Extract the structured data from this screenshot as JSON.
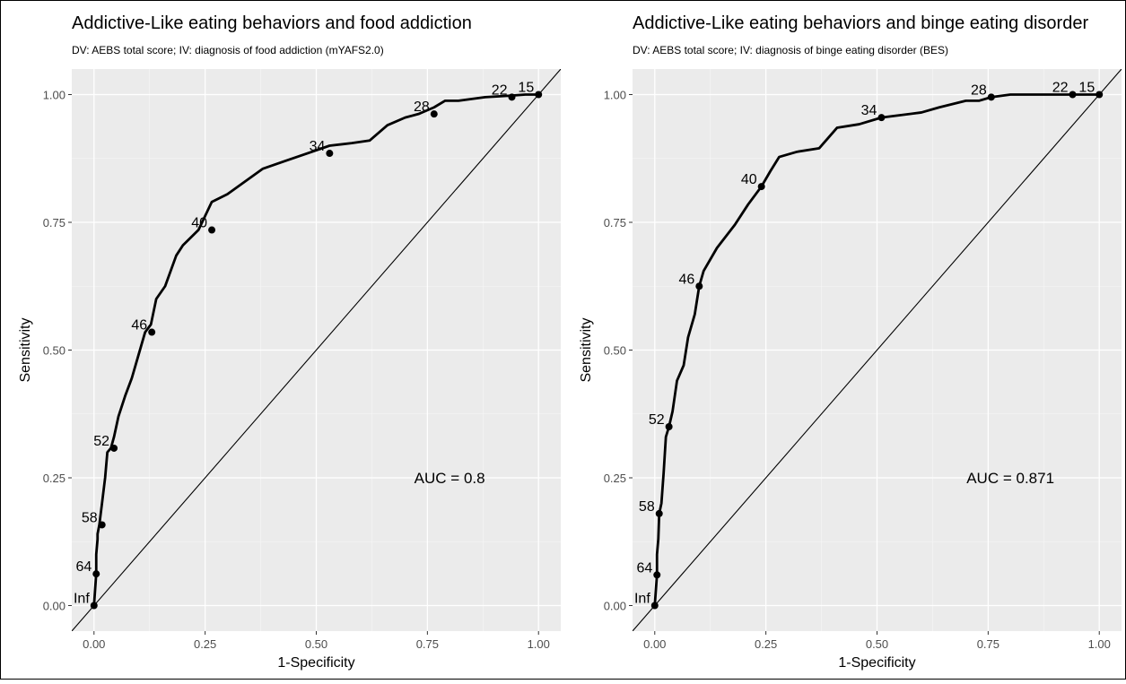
{
  "chart_data": [
    {
      "type": "line",
      "title": "Addictive-Like eating behaviors and food addiction",
      "subtitle": "DV: AEBS total score; IV: diagnosis of food addiction (mYAFS2.0)",
      "xlabel": "1-Specificity",
      "ylabel": "Sensitivity",
      "xlim": [
        -0.05,
        1.05
      ],
      "ylim": [
        -0.05,
        1.05
      ],
      "xticks": [
        0,
        0.25,
        0.5,
        0.75,
        1
      ],
      "xtick_labels": [
        "0.00",
        "0.25",
        "0.50",
        "0.75",
        "1.00"
      ],
      "yticks": [
        0,
        0.25,
        0.5,
        0.75,
        1
      ],
      "ytick_labels": [
        "0.00",
        "0.25",
        "0.50",
        "0.75",
        "1.00"
      ],
      "grid": true,
      "diagonal_reference": true,
      "annotation": "AUC = 0.8",
      "annotation_pos": [
        0.8,
        0.25
      ],
      "curve": {
        "x": [
          0,
          0.005,
          0.005,
          0.008,
          0.008,
          0.012,
          0.018,
          0.025,
          0.03,
          0.038,
          0.045,
          0.055,
          0.07,
          0.085,
          0.1,
          0.115,
          0.128,
          0.14,
          0.16,
          0.185,
          0.2,
          0.235,
          0.265,
          0.3,
          0.34,
          0.38,
          0.43,
          0.48,
          0.53,
          0.58,
          0.62,
          0.66,
          0.7,
          0.73,
          0.765,
          0.79,
          0.82,
          0.88,
          0.94,
          0.97,
          1
        ],
        "y": [
          0,
          0.062,
          0.1,
          0.13,
          0.14,
          0.158,
          0.2,
          0.25,
          0.3,
          0.308,
          0.33,
          0.37,
          0.41,
          0.445,
          0.49,
          0.535,
          0.55,
          0.6,
          0.625,
          0.685,
          0.705,
          0.735,
          0.79,
          0.805,
          0.83,
          0.855,
          0.87,
          0.885,
          0.9,
          0.905,
          0.91,
          0.94,
          0.955,
          0.962,
          0.975,
          0.988,
          0.988,
          0.995,
          0.998,
          1,
          1
        ]
      },
      "labeled_points": [
        {
          "label": "Inf",
          "x": 0,
          "y": 0
        },
        {
          "label": "64",
          "x": 0.005,
          "y": 0.062
        },
        {
          "label": "58",
          "x": 0.018,
          "y": 0.158
        },
        {
          "label": "52",
          "x": 0.045,
          "y": 0.308
        },
        {
          "label": "46",
          "x": 0.13,
          "y": 0.535
        },
        {
          "label": "40",
          "x": 0.265,
          "y": 0.735
        },
        {
          "label": "34",
          "x": 0.53,
          "y": 0.885
        },
        {
          "label": "28",
          "x": 0.765,
          "y": 0.962
        },
        {
          "label": "22",
          "x": 0.94,
          "y": 0.995
        },
        {
          "label": "15",
          "x": 1,
          "y": 1
        }
      ]
    },
    {
      "type": "line",
      "title": "Addictive-Like eating behaviors and binge eating disorder",
      "subtitle": "DV: AEBS total score; IV: diagnosis of binge eating disorder (BES)",
      "xlabel": "1-Specificity",
      "ylabel": "Sensitivity",
      "xlim": [
        -0.05,
        1.05
      ],
      "ylim": [
        -0.05,
        1.05
      ],
      "xticks": [
        0,
        0.25,
        0.5,
        0.75,
        1
      ],
      "xtick_labels": [
        "0.00",
        "0.25",
        "0.50",
        "0.75",
        "1.00"
      ],
      "yticks": [
        0,
        0.25,
        0.5,
        0.75,
        1
      ],
      "ytick_labels": [
        "0.00",
        "0.25",
        "0.50",
        "0.75",
        "1.00"
      ],
      "grid": true,
      "diagonal_reference": true,
      "annotation": "AUC = 0.871",
      "annotation_pos": [
        0.8,
        0.25
      ],
      "curve": {
        "x": [
          0,
          0.005,
          0.005,
          0.008,
          0.01,
          0.015,
          0.02,
          0.025,
          0.032,
          0.04,
          0.05,
          0.065,
          0.075,
          0.09,
          0.1,
          0.11,
          0.14,
          0.18,
          0.21,
          0.24,
          0.26,
          0.28,
          0.32,
          0.37,
          0.41,
          0.46,
          0.51,
          0.6,
          0.64,
          0.7,
          0.73,
          0.757,
          0.8,
          0.9,
          0.94,
          1
        ],
        "y": [
          0,
          0.06,
          0.1,
          0.13,
          0.18,
          0.2,
          0.26,
          0.33,
          0.35,
          0.38,
          0.44,
          0.47,
          0.525,
          0.57,
          0.625,
          0.655,
          0.7,
          0.745,
          0.785,
          0.82,
          0.85,
          0.878,
          0.888,
          0.895,
          0.935,
          0.942,
          0.955,
          0.965,
          0.975,
          0.988,
          0.988,
          0.995,
          1,
          1,
          1,
          1
        ]
      },
      "labeled_points": [
        {
          "label": "Inf",
          "x": 0,
          "y": 0
        },
        {
          "label": "64",
          "x": 0.005,
          "y": 0.06
        },
        {
          "label": "58",
          "x": 0.01,
          "y": 0.18
        },
        {
          "label": "52",
          "x": 0.032,
          "y": 0.35
        },
        {
          "label": "46",
          "x": 0.1,
          "y": 0.625
        },
        {
          "label": "40",
          "x": 0.24,
          "y": 0.82
        },
        {
          "label": "34",
          "x": 0.51,
          "y": 0.955
        },
        {
          "label": "28",
          "x": 0.757,
          "y": 0.995
        },
        {
          "label": "22",
          "x": 0.94,
          "y": 1
        },
        {
          "label": "15",
          "x": 1,
          "y": 1
        }
      ]
    }
  ]
}
